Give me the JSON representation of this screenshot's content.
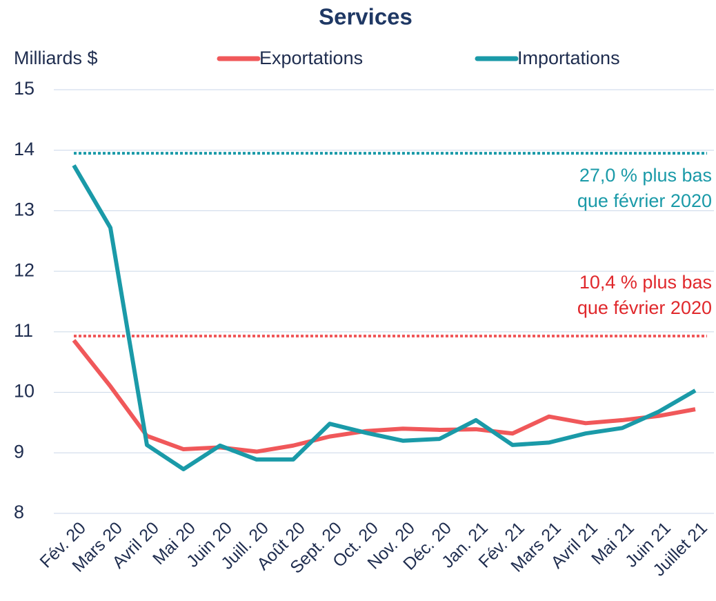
{
  "chart_data": {
    "type": "line",
    "title": "Services",
    "y_label": "Milliards $",
    "categories": [
      "Fév. 20",
      "Mars 20",
      "Avril 20",
      "Mai 20",
      "Juin 20",
      "Juill. 20",
      "Août 20",
      "Sept. 20",
      "Oct. 20",
      "Nov. 20",
      "Déc. 20",
      "Jan. 21",
      "Fév. 21",
      "Mars 21",
      "Avril 21",
      "Mai 21",
      "Juin 21",
      "Juillet 21"
    ],
    "series": [
      {
        "name": "Exportations",
        "color": "#f0585a",
        "values": [
          10.86,
          10.1,
          9.28,
          9.06,
          9.09,
          9.02,
          9.12,
          9.27,
          9.36,
          9.4,
          9.38,
          9.39,
          9.32,
          9.6,
          9.49,
          9.54,
          9.61,
          9.72
        ]
      },
      {
        "name": "Importations",
        "color": "#1a9aa8",
        "values": [
          13.75,
          12.72,
          9.13,
          8.73,
          9.12,
          8.89,
          8.89,
          9.48,
          9.33,
          9.2,
          9.23,
          9.54,
          9.13,
          9.17,
          9.32,
          9.41,
          9.68,
          10.03
        ]
      }
    ],
    "reference_lines": [
      {
        "value": 13.95,
        "color": "#1a9aa8",
        "text_color": "#1a9aa8",
        "annotation": [
          "27,0 % plus bas",
          "que février 2020"
        ]
      },
      {
        "value": 10.93,
        "color": "#f0585a",
        "text_color": "#e0282c",
        "annotation": [
          "10,4 % plus bas",
          "que février 2020"
        ]
      }
    ],
    "ylim": [
      8,
      15
    ],
    "yticks": [
      8,
      9,
      10,
      11,
      12,
      13,
      14,
      15
    ],
    "grid": true
  }
}
